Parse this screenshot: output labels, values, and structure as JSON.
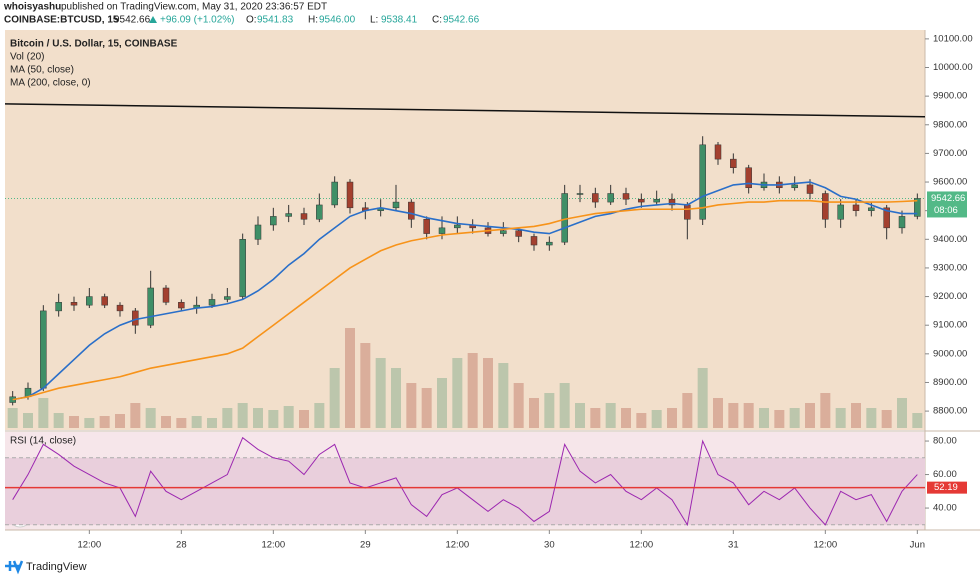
{
  "header": {
    "user": "whoisyashu",
    "published": "published on TradingView.com, May 31, 2020 23:36:57 EDT",
    "symbol": "COINBASE:BTCUSD, 15",
    "price": "9542.66",
    "change": "+96.09 (+1.02%)",
    "ohlc": [
      {
        "key": "O:",
        "val": "9541.83"
      },
      {
        "key": "H:",
        "val": "9546.00"
      },
      {
        "key": "L:",
        "val": "9538.41"
      },
      {
        "key": "C:",
        "val": "9542.66"
      }
    ]
  },
  "footer": {
    "brand": "TradingView"
  },
  "chart_data": {
    "type": "candlestick",
    "title": "Bitcoin / U.S. Dollar, 15, COINBASE",
    "categories": [
      null,
      null,
      null,
      null,
      null,
      "12:00",
      null,
      null,
      null,
      null,
      null,
      "28",
      null,
      null,
      null,
      null,
      null,
      "12:00",
      null,
      null,
      null,
      null,
      null,
      "29",
      null,
      null,
      null,
      null,
      null,
      "12:00",
      null,
      null,
      null,
      null,
      null,
      "30",
      null,
      null,
      null,
      null,
      null,
      "12:00",
      null,
      null,
      null,
      null,
      null,
      "31",
      null,
      null,
      null,
      null,
      null,
      "12:00",
      null,
      null,
      null,
      null,
      null,
      "Jun"
    ],
    "open": [
      8830,
      8850,
      8880,
      9150,
      9180,
      9170,
      9200,
      9170,
      9150,
      9100,
      9230,
      9180,
      9160,
      9170,
      9190,
      9200,
      9400,
      9450,
      9480,
      9490,
      9470,
      9520,
      9600,
      9510,
      9500,
      9510,
      9530,
      9470,
      9420,
      9440,
      9450,
      9440,
      9420,
      9430,
      9410,
      9380,
      9390,
      9560,
      9560,
      9530,
      9560,
      9540,
      9530,
      9540,
      9520,
      9470,
      9730,
      9680,
      9650,
      9580,
      9600,
      9580,
      9590,
      9560,
      9470,
      9520,
      9500,
      9510,
      9440,
      9480
    ],
    "high": [
      8870,
      8900,
      9170,
      9210,
      9200,
      9230,
      9210,
      9180,
      9160,
      9290,
      9240,
      9190,
      9200,
      9210,
      9230,
      9420,
      9480,
      9510,
      9520,
      9510,
      9560,
      9620,
      9610,
      9530,
      9540,
      9590,
      9540,
      9480,
      9480,
      9480,
      9470,
      9460,
      9460,
      9440,
      9420,
      9410,
      9590,
      9590,
      9580,
      9590,
      9580,
      9560,
      9570,
      9560,
      9530,
      9760,
      9740,
      9700,
      9660,
      9630,
      9620,
      9620,
      9610,
      9570,
      9540,
      9540,
      9530,
      9520,
      9500,
      9560
    ],
    "low": [
      8820,
      8840,
      8870,
      9130,
      9150,
      9160,
      9160,
      9130,
      9070,
      9090,
      9170,
      9150,
      9140,
      9160,
      9180,
      9190,
      9380,
      9430,
      9460,
      9450,
      9460,
      9510,
      9490,
      9470,
      9480,
      9500,
      9440,
      9400,
      9400,
      9420,
      9420,
      9410,
      9410,
      9390,
      9360,
      9360,
      9380,
      9530,
      9510,
      9520,
      9520,
      9510,
      9520,
      9500,
      9400,
      9450,
      9660,
      9630,
      9560,
      9570,
      9560,
      9570,
      9540,
      9440,
      9440,
      9480,
      9480,
      9400,
      9420,
      9470
    ],
    "close": [
      8850,
      8880,
      9150,
      9180,
      9170,
      9200,
      9170,
      9150,
      9100,
      9230,
      9180,
      9160,
      9170,
      9190,
      9200,
      9400,
      9450,
      9480,
      9490,
      9470,
      9520,
      9600,
      9510,
      9500,
      9510,
      9530,
      9470,
      9420,
      9440,
      9450,
      9440,
      9420,
      9430,
      9410,
      9380,
      9390,
      9560,
      9560,
      9530,
      9560,
      9540,
      9530,
      9540,
      9520,
      9470,
      9730,
      9680,
      9650,
      9580,
      9600,
      9580,
      9590,
      9560,
      9470,
      9520,
      9500,
      9510,
      9440,
      9480,
      9542.66
    ],
    "up_color": "#3f8f67",
    "down_color": "#a3402f",
    "ylim": [
      8734,
      10131
    ],
    "yticks": [
      {
        "value": 8800,
        "label": "8800.00"
      },
      {
        "value": 8900,
        "label": "8900.00"
      },
      {
        "value": 9000,
        "label": "9000.00"
      },
      {
        "value": 9100,
        "label": "9100.00"
      },
      {
        "value": 9200,
        "label": "9200.00"
      },
      {
        "value": 9300,
        "label": "9300.00"
      },
      {
        "value": 9400,
        "label": "9400.00"
      },
      {
        "value": 9500,
        "label": "9500.00"
      },
      {
        "value": 9600,
        "label": "9600.00"
      },
      {
        "value": 9700,
        "label": "9700.00"
      },
      {
        "value": 9800,
        "label": "9800.00"
      },
      {
        "value": 9900,
        "label": "9900.00"
      },
      {
        "value": 10000,
        "label": "10000.00"
      },
      {
        "value": 10100,
        "label": "10100.00"
      }
    ],
    "series": [
      {
        "name": "MA (50, close)",
        "color": "#2a6fc9",
        "values": [
          8840,
          8850,
          8880,
          8930,
          8980,
          9030,
          9070,
          9100,
          9120,
          9130,
          9140,
          9150,
          9160,
          9165,
          9175,
          9190,
          9220,
          9260,
          9310,
          9350,
          9400,
          9440,
          9480,
          9500,
          9510,
          9500,
          9490,
          9475,
          9465,
          9455,
          9450,
          9445,
          9440,
          9435,
          9425,
          9420,
          9440,
          9460,
          9480,
          9490,
          9505,
          9515,
          9520,
          9525,
          9520,
          9550,
          9570,
          9590,
          9595,
          9590,
          9590,
          9595,
          9600,
          9580,
          9550,
          9540,
          9520,
          9500,
          9490,
          9490
        ]
      },
      {
        "name": "MA (200, close, 0)",
        "color": "#f7931a",
        "values": [
          8840,
          8850,
          8865,
          8880,
          8890,
          8900,
          8910,
          8920,
          8935,
          8950,
          8960,
          8970,
          8980,
          8990,
          9000,
          9020,
          9060,
          9100,
          9140,
          9180,
          9220,
          9260,
          9300,
          9330,
          9360,
          9380,
          9395,
          9405,
          9415,
          9420,
          9425,
          9430,
          9435,
          9440,
          9445,
          9455,
          9470,
          9480,
          9490,
          9495,
          9500,
          9505,
          9505,
          9505,
          9505,
          9510,
          9520,
          9525,
          9530,
          9530,
          9535,
          9535,
          9535,
          9530,
          9530,
          9530,
          9530,
          9530,
          9532,
          9535
        ]
      }
    ],
    "volume": {
      "name": "Vol (20)",
      "values": [
        20,
        15,
        30,
        15,
        12,
        10,
        12,
        14,
        25,
        20,
        12,
        10,
        12,
        10,
        20,
        25,
        20,
        18,
        22,
        18,
        25,
        60,
        100,
        85,
        70,
        60,
        45,
        40,
        50,
        70,
        75,
        70,
        65,
        45,
        30,
        35,
        45,
        25,
        20,
        25,
        20,
        15,
        18,
        20,
        35,
        60,
        30,
        25,
        25,
        20,
        18,
        20,
        25,
        35,
        20,
        25,
        20,
        18,
        30,
        15
      ]
    },
    "trendline": {
      "color": "#111111",
      "values": [
        9873,
        9828
      ]
    },
    "last_price": {
      "value": 9542.66,
      "color": "#53b987"
    },
    "countdown": "08:06",
    "rsi": {
      "name": "RSI (14, close)",
      "color": "#9c27b0",
      "values": [
        45,
        60,
        78,
        72,
        65,
        60,
        55,
        52,
        35,
        62,
        50,
        45,
        50,
        55,
        60,
        82,
        75,
        70,
        68,
        60,
        72,
        78,
        55,
        52,
        55,
        58,
        42,
        35,
        48,
        52,
        45,
        38,
        45,
        40,
        32,
        38,
        78,
        62,
        55,
        60,
        50,
        45,
        52,
        45,
        30,
        80,
        60,
        55,
        42,
        50,
        45,
        52,
        40,
        30,
        50,
        45,
        48,
        32,
        50,
        60
      ],
      "ylim": [
        26.9,
        85.4
      ],
      "band": [
        30,
        70
      ],
      "band_color": "#e9cfdc",
      "yticks": [
        {
          "value": 40,
          "label": "40.00"
        },
        {
          "value": 60,
          "label": "60.00"
        },
        {
          "value": 80,
          "label": "80.00"
        }
      ],
      "ma": {
        "value": 52.19,
        "color": "#e53935"
      }
    }
  }
}
